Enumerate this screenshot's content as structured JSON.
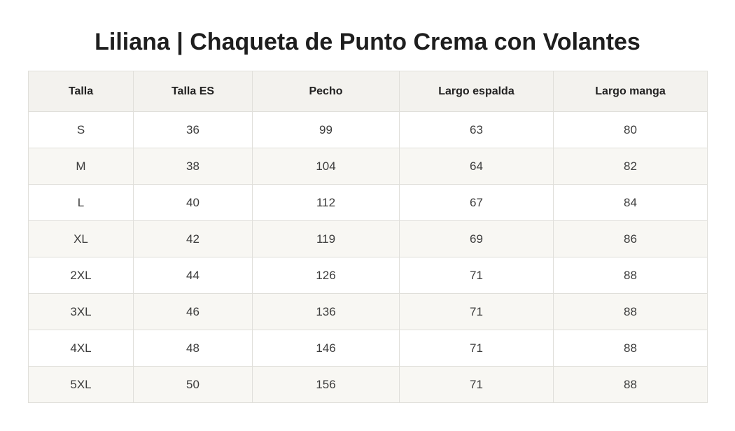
{
  "title": "Liliana | Chaqueta de Punto Crema con Volantes",
  "table": {
    "headers": [
      "Talla",
      "Talla ES",
      "Pecho",
      "Largo espalda",
      "Largo manga"
    ],
    "rows": [
      [
        "S",
        "36",
        "99",
        "63",
        "80"
      ],
      [
        "M",
        "38",
        "104",
        "64",
        "82"
      ],
      [
        "L",
        "40",
        "112",
        "67",
        "84"
      ],
      [
        "XL",
        "42",
        "119",
        "69",
        "86"
      ],
      [
        "2XL",
        "44",
        "126",
        "71",
        "88"
      ],
      [
        "3XL",
        "46",
        "136",
        "71",
        "88"
      ],
      [
        "4XL",
        "48",
        "146",
        "71",
        "88"
      ],
      [
        "5XL",
        "50",
        "156",
        "71",
        "88"
      ]
    ]
  },
  "colors": {
    "header_background": "#f3f2ee",
    "row_alt_background": "#f8f7f3",
    "border": "#e0dfda"
  }
}
